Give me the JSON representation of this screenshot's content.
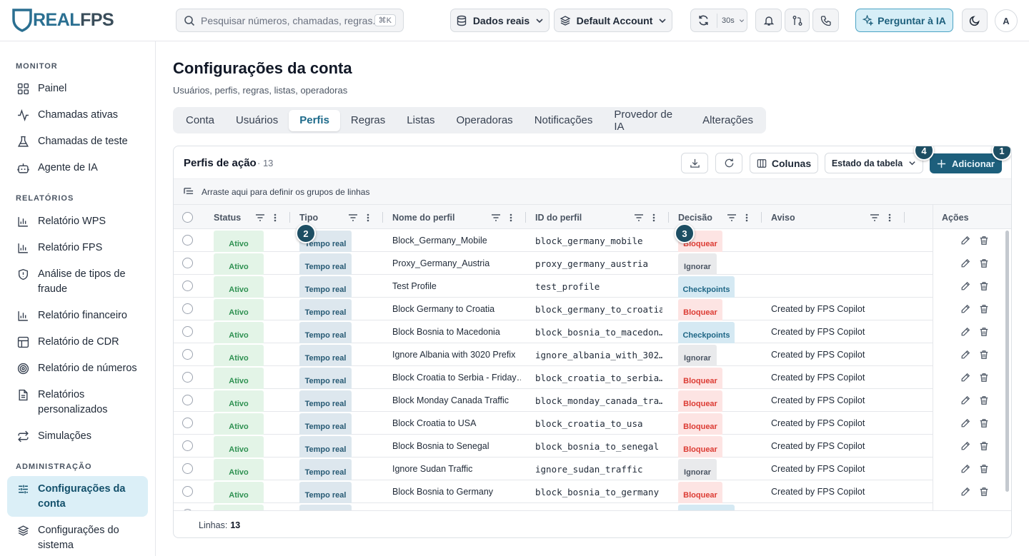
{
  "topbar": {
    "logo_brand": "REAL",
    "logo_suffix": "FPS",
    "search_placeholder": "Pesquisar números, chamadas, regras...",
    "search_shortcut": "⌘K",
    "data_source": "Dados reais",
    "account": "Default Account",
    "refresh_interval": "30s",
    "ai_button": "Perguntar à IA",
    "avatar_initial": "A"
  },
  "sidebar": {
    "sections": {
      "monitor": "MONITOR",
      "reports": "RELATÓRIOS",
      "admin": "ADMINISTRAÇÃO"
    },
    "items": [
      {
        "label": "Painel",
        "icon": "grid-icon"
      },
      {
        "label": "Chamadas ativas",
        "icon": "activity-icon"
      },
      {
        "label": "Chamadas de teste",
        "icon": "flask-icon"
      },
      {
        "label": "Agente de IA",
        "icon": "bot-icon"
      },
      {
        "label": "Relatório WPS",
        "icon": "bar-chart-icon"
      },
      {
        "label": "Relatório FPS",
        "icon": "bar-chart-icon"
      },
      {
        "label": "Análise de tipos de fraude",
        "icon": "shield-icon"
      },
      {
        "label": "Relatório financeiro",
        "icon": "bar-chart-icon"
      },
      {
        "label": "Relatório de CDR",
        "icon": "table-icon"
      },
      {
        "label": "Relatório de números",
        "icon": "target-icon"
      },
      {
        "label": "Relatórios personalizados",
        "icon": "file-icon"
      },
      {
        "label": "Simulações",
        "icon": "repeat-icon"
      },
      {
        "label": "Configurações da conta",
        "icon": "sliders-icon"
      },
      {
        "label": "Configurações do sistema",
        "icon": "layers-icon"
      }
    ],
    "active_index": 12
  },
  "page": {
    "title": "Configurações da conta",
    "subtitle": "Usuários, perfis, regras, listas, operadoras",
    "tabs": [
      "Conta",
      "Usuários",
      "Perfis",
      "Regras",
      "Listas",
      "Operadoras",
      "Notificações",
      "Provedor de IA",
      "Alterações"
    ],
    "active_tab": 2
  },
  "panel": {
    "title": "Perfis de ação",
    "count": "· 13",
    "columns_button": "Colunas",
    "table_state_button": "Estado da tabela",
    "add_button": "Adicionar",
    "group_hint": "Arraste aqui para definir os grupos de linhas",
    "headers": {
      "status": "Status",
      "tipo": "Tipo",
      "nome": "Nome do perfil",
      "id": "ID do perfil",
      "decisao": "Decisão",
      "aviso": "Aviso",
      "acoes": "Ações"
    },
    "rows": [
      {
        "status": "Ativo",
        "tipo": "Tempo real",
        "nome": "Block_Germany_Mobile",
        "id": "block_germany_mobile",
        "decisao": "Bloquear",
        "aviso": ""
      },
      {
        "status": "Ativo",
        "tipo": "Tempo real",
        "nome": "Proxy_Germany_Austria",
        "id": "proxy_germany_austria",
        "decisao": "Ignorar",
        "aviso": ""
      },
      {
        "status": "Ativo",
        "tipo": "Tempo real",
        "nome": "Test Profile",
        "id": "test_profile",
        "decisao": "Checkpoints",
        "aviso": ""
      },
      {
        "status": "Ativo",
        "tipo": "Tempo real",
        "nome": "Block Germany to Croatia",
        "id": "block_germany_to_croatia",
        "decisao": "Bloquear",
        "aviso": "Created by FPS Copilot"
      },
      {
        "status": "Ativo",
        "tipo": "Tempo real",
        "nome": "Block Bosnia to Macedonia",
        "id": "block_bosnia_to_macedon…",
        "decisao": "Checkpoints",
        "aviso": "Created by FPS Copilot"
      },
      {
        "status": "Ativo",
        "tipo": "Tempo real",
        "nome": "Ignore Albania with 3020 Prefix",
        "id": "ignore_albania_with_302…",
        "decisao": "Ignorar",
        "aviso": "Created by FPS Copilot"
      },
      {
        "status": "Ativo",
        "tipo": "Tempo real",
        "nome": "Block Croatia to Serbia - Friday…",
        "id": "block_croatia_to_serbia…",
        "decisao": "Bloquear",
        "aviso": "Created by FPS Copilot"
      },
      {
        "status": "Ativo",
        "tipo": "Tempo real",
        "nome": "Block Monday Canada Traffic",
        "id": "block_monday_canada_tra…",
        "decisao": "Bloquear",
        "aviso": "Created by FPS Copilot"
      },
      {
        "status": "Ativo",
        "tipo": "Tempo real",
        "nome": "Block Croatia to USA",
        "id": "block_croatia_to_usa",
        "decisao": "Bloquear",
        "aviso": "Created by FPS Copilot"
      },
      {
        "status": "Ativo",
        "tipo": "Tempo real",
        "nome": "Block Bosnia to Senegal",
        "id": "block_bosnia_to_senegal",
        "decisao": "Bloquear",
        "aviso": "Created by FPS Copilot"
      },
      {
        "status": "Ativo",
        "tipo": "Tempo real",
        "nome": "Ignore Sudan Traffic",
        "id": "ignore_sudan_traffic",
        "decisao": "Ignorar",
        "aviso": "Created by FPS Copilot"
      },
      {
        "status": "Ativo",
        "tipo": "Tempo real",
        "nome": "Block Bosnia to Germany",
        "id": "block_bosnia_to_germany",
        "decisao": "Bloquear",
        "aviso": "Created by FPS Copilot"
      }
    ],
    "footer_label": "Linhas:",
    "footer_count": "13"
  },
  "markers": [
    "1",
    "2",
    "3",
    "4"
  ],
  "colors": {
    "accent": "#1d5f7c",
    "active_nav_bg": "#dbeff7",
    "status_green": "#2f9152",
    "block_red": "#dc3b33"
  }
}
